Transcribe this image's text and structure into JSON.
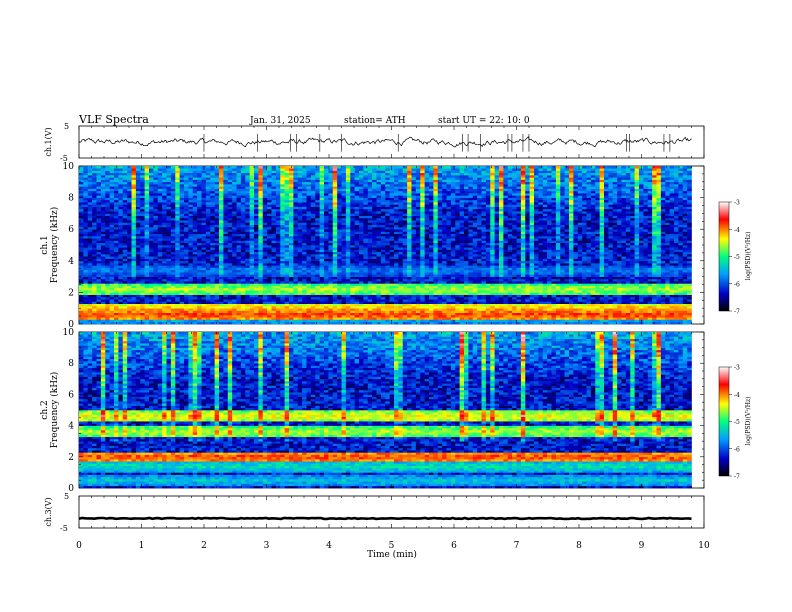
{
  "header": {
    "title": "VLF  Spectra",
    "date": "Jan. 31, 2025",
    "station": "station= ATH",
    "start": "start  UT  =   22: 10: 0"
  },
  "chart_data": [
    {
      "type": "line",
      "name": "ch1-waveform",
      "ylabel": "ch.1(V)",
      "ylim": [
        -5,
        5
      ],
      "yticks": [
        "5",
        "-5"
      ],
      "xlim": [
        0,
        10
      ],
      "baseline": 0
    },
    {
      "type": "heatmap",
      "name": "ch1-spectrogram",
      "ylabel_top": "ch.1",
      "ylabel": "Frequency  (kHz)",
      "ylim": [
        0,
        10
      ],
      "yticks": [
        "0",
        "2",
        "4",
        "6",
        "8",
        "10"
      ],
      "xlim": [
        0,
        10
      ],
      "data_end_min": 9.8,
      "colorbar": {
        "label": "log(PSD)(V²/Hz)",
        "range": [
          -7,
          -3
        ],
        "ticks": [
          "-3",
          "-4",
          "-5",
          "-6",
          "-7"
        ],
        "colors": [
          "#000000",
          "#0000c8",
          "#00a0ff",
          "#00ff80",
          "#ffff00",
          "#ff0000",
          "#ffffff"
        ]
      },
      "bands_khz": [
        {
          "f": 2.2,
          "level": -4.6
        },
        {
          "f": 1.0,
          "level": -4.2
        },
        {
          "f": 0.6,
          "level": -3.8
        },
        {
          "f": 0.3,
          "level": -5.5
        },
        {
          "f": 4.3,
          "level": -6.6
        },
        {
          "f": 3.4,
          "level": -5.8
        }
      ]
    },
    {
      "type": "heatmap",
      "name": "ch2-spectrogram",
      "ylabel_top": "ch.2",
      "ylabel": "Frequency  (kHz)",
      "ylim": [
        0,
        10
      ],
      "yticks": [
        "0",
        "2",
        "4",
        "6",
        "8",
        "10"
      ],
      "xlim": [
        0,
        10
      ],
      "data_end_min": 9.8,
      "colorbar": {
        "label": "log(PSD)(V²/Hz)",
        "range": [
          -7,
          -3
        ],
        "ticks": [
          "-3",
          "-4",
          "-5",
          "-6",
          "-7"
        ],
        "colors": [
          "#000000",
          "#0000c8",
          "#00a0ff",
          "#00ff80",
          "#ffff00",
          "#ff0000",
          "#ffffff"
        ]
      },
      "bands_khz": [
        {
          "f": 2.0,
          "level": -3.8
        },
        {
          "f": 4.6,
          "level": -4.4
        },
        {
          "f": 3.6,
          "level": -4.6
        },
        {
          "f": 1.4,
          "level": -5.2
        },
        {
          "f": 0.5,
          "level": -5.4
        }
      ]
    },
    {
      "type": "line",
      "name": "ch3-waveform",
      "ylabel": "ch.3(V)",
      "ylim": [
        -5,
        5
      ],
      "yticks": [
        "5",
        "-5"
      ],
      "xlim": [
        0,
        10
      ],
      "baseline": -2,
      "xlabel": "Time  (min)",
      "xticks": [
        "0",
        "1",
        "2",
        "3",
        "4",
        "5",
        "6",
        "7",
        "8",
        "9",
        "10"
      ]
    }
  ]
}
